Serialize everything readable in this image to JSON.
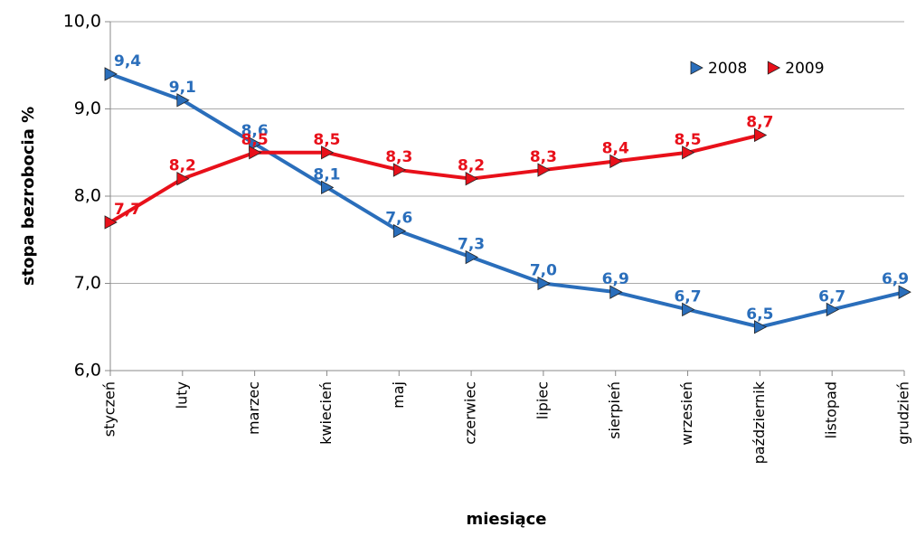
{
  "chart_data": {
    "type": "line",
    "x_label": "miesiące",
    "y_label": "stopa bezrobocia %",
    "categories": [
      "styczeń",
      "luty",
      "marzec",
      "kwiecień",
      "maj",
      "czerwiec",
      "lipiec",
      "sierpień",
      "wrzesień",
      "październik",
      "listopad",
      "grudzień"
    ],
    "series": [
      {
        "name": "2008",
        "color": "#2a6ebb",
        "values": [
          9.4,
          9.1,
          8.6,
          8.1,
          7.6,
          7.3,
          7.0,
          6.9,
          6.7,
          6.5,
          6.7,
          6.9
        ],
        "value_labels": [
          "9,4",
          "9,1",
          "8,6",
          "8,1",
          "7,6",
          "7,3",
          "7,0",
          "6,9",
          "6,7",
          "6,5",
          "6,7",
          "6,9"
        ]
      },
      {
        "name": "2009",
        "color": "#e8101a",
        "values": [
          7.7,
          8.2,
          8.5,
          8.5,
          8.3,
          8.2,
          8.3,
          8.4,
          8.5,
          8.7,
          null,
          null
        ],
        "value_labels": [
          "7,7",
          "8,2",
          "8,5",
          "8,5",
          "8,3",
          "8,2",
          "8,3",
          "8,4",
          "8,5",
          "8,7",
          null,
          null
        ]
      }
    ],
    "ylim": [
      6,
      10
    ],
    "yticks": [
      {
        "value": 6,
        "label": "6,0"
      },
      {
        "value": 7,
        "label": "7,0"
      },
      {
        "value": 8,
        "label": "8,0"
      },
      {
        "value": 9,
        "label": "9,0"
      },
      {
        "value": 10,
        "label": "10,0"
      }
    ],
    "grid": true,
    "legend": "top-right"
  }
}
